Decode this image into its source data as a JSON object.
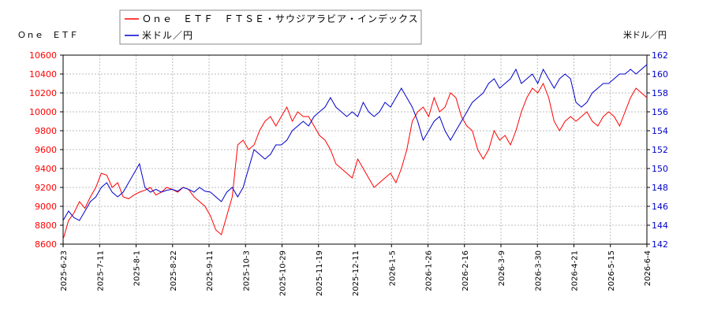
{
  "chart_data": {
    "type": "line",
    "left_axis_label": "Ｏｎｅ　ＥＴＦ",
    "right_axis_label": "米ドル／円",
    "ylim_left": [
      8600,
      10600
    ],
    "ylim_right": [
      142,
      162
    ],
    "yticks_left": [
      "8600",
      "8800",
      "9000",
      "9200",
      "9400",
      "9600",
      "9800",
      "10000",
      "10200",
      "10400",
      "10600"
    ],
    "yticks_right": [
      "142",
      "144",
      "146",
      "148",
      "150",
      "152",
      "154",
      "156",
      "158",
      "160",
      "162"
    ],
    "xticks": [
      "2025-6-23",
      "2025-7-11",
      "2025-8-1",
      "2025-8-22",
      "2025-9-11",
      "2025-10-3",
      "2025-10-29",
      "2025-11-19",
      "2025-12-11",
      "2026-1-5",
      "2026-1-26",
      "2026-2-16",
      "2026-3-9",
      "2026-3-30",
      "2026-4-21",
      "2026-5-15",
      "2026-6-4"
    ],
    "grid": true,
    "legend_position": "top-center",
    "series": [
      {
        "name": "Ｏｎｅ　ＥＴＦ　ＦＴＳＥ・サウジアラビア・インデックス",
        "color": "#ff0000",
        "axis": "left",
        "values": [
          8650,
          8850,
          8930,
          9050,
          8980,
          9100,
          9200,
          9350,
          9330,
          9200,
          9250,
          9100,
          9080,
          9120,
          9150,
          9170,
          9200,
          9120,
          9150,
          9200,
          9180,
          9150,
          9200,
          9180,
          9100,
          9050,
          9000,
          8900,
          8750,
          8700,
          8900,
          9100,
          9650,
          9700,
          9600,
          9650,
          9800,
          9900,
          9950,
          9850,
          9950,
          10050,
          9900,
          10000,
          9950,
          9950,
          9850,
          9750,
          9700,
          9600,
          9450,
          9400,
          9350,
          9300,
          9500,
          9400,
          9300,
          9200,
          9250,
          9300,
          9350,
          9250,
          9400,
          9600,
          9900,
          10000,
          10050,
          9950,
          10150,
          10000,
          10050,
          10200,
          10150,
          9950,
          9850,
          9800,
          9600,
          9500,
          9600,
          9800,
          9700,
          9750,
          9650,
          9800,
          10000,
          10150,
          10250,
          10200,
          10300,
          10150,
          9900,
          9800,
          9900,
          9950,
          9900,
          9950,
          10000,
          9900,
          9850,
          9950,
          10000,
          9950,
          9850,
          10000,
          10150,
          10250,
          10200,
          10150
        ]
      },
      {
        "name": "米ドル／円",
        "color": "#0000cc",
        "axis": "right",
        "values": [
          144.5,
          145.5,
          144.8,
          144.5,
          145.5,
          146.5,
          147.0,
          148.0,
          148.5,
          147.5,
          147.0,
          147.5,
          148.5,
          149.5,
          150.5,
          148.0,
          147.5,
          147.8,
          147.5,
          147.7,
          147.8,
          147.6,
          148.0,
          147.8,
          147.5,
          148.0,
          147.6,
          147.5,
          147.0,
          146.5,
          147.5,
          148.0,
          147.0,
          148.0,
          150.0,
          152.0,
          151.5,
          151.0,
          151.5,
          152.5,
          152.5,
          153.0,
          154.0,
          154.5,
          155.0,
          154.5,
          155.5,
          156.0,
          156.5,
          157.5,
          156.5,
          156.0,
          155.5,
          156.0,
          155.5,
          157.0,
          156.0,
          155.5,
          156.0,
          157.0,
          156.5,
          157.5,
          158.5,
          157.5,
          156.5,
          155.0,
          153.0,
          154.0,
          155.0,
          155.5,
          154.0,
          153.0,
          154.0,
          155.0,
          156.0,
          157.0,
          157.5,
          158.0,
          159.0,
          159.5,
          158.5,
          159.0,
          159.5,
          160.5,
          159.0,
          159.5,
          160.0,
          159.0,
          160.5,
          159.5,
          158.5,
          159.5,
          160.0,
          159.5,
          157.0,
          156.5,
          157.0,
          158.0,
          158.5,
          159.0,
          159.0,
          159.5,
          160.0,
          160.0,
          160.5,
          160.0,
          160.5,
          161.0
        ]
      }
    ]
  }
}
